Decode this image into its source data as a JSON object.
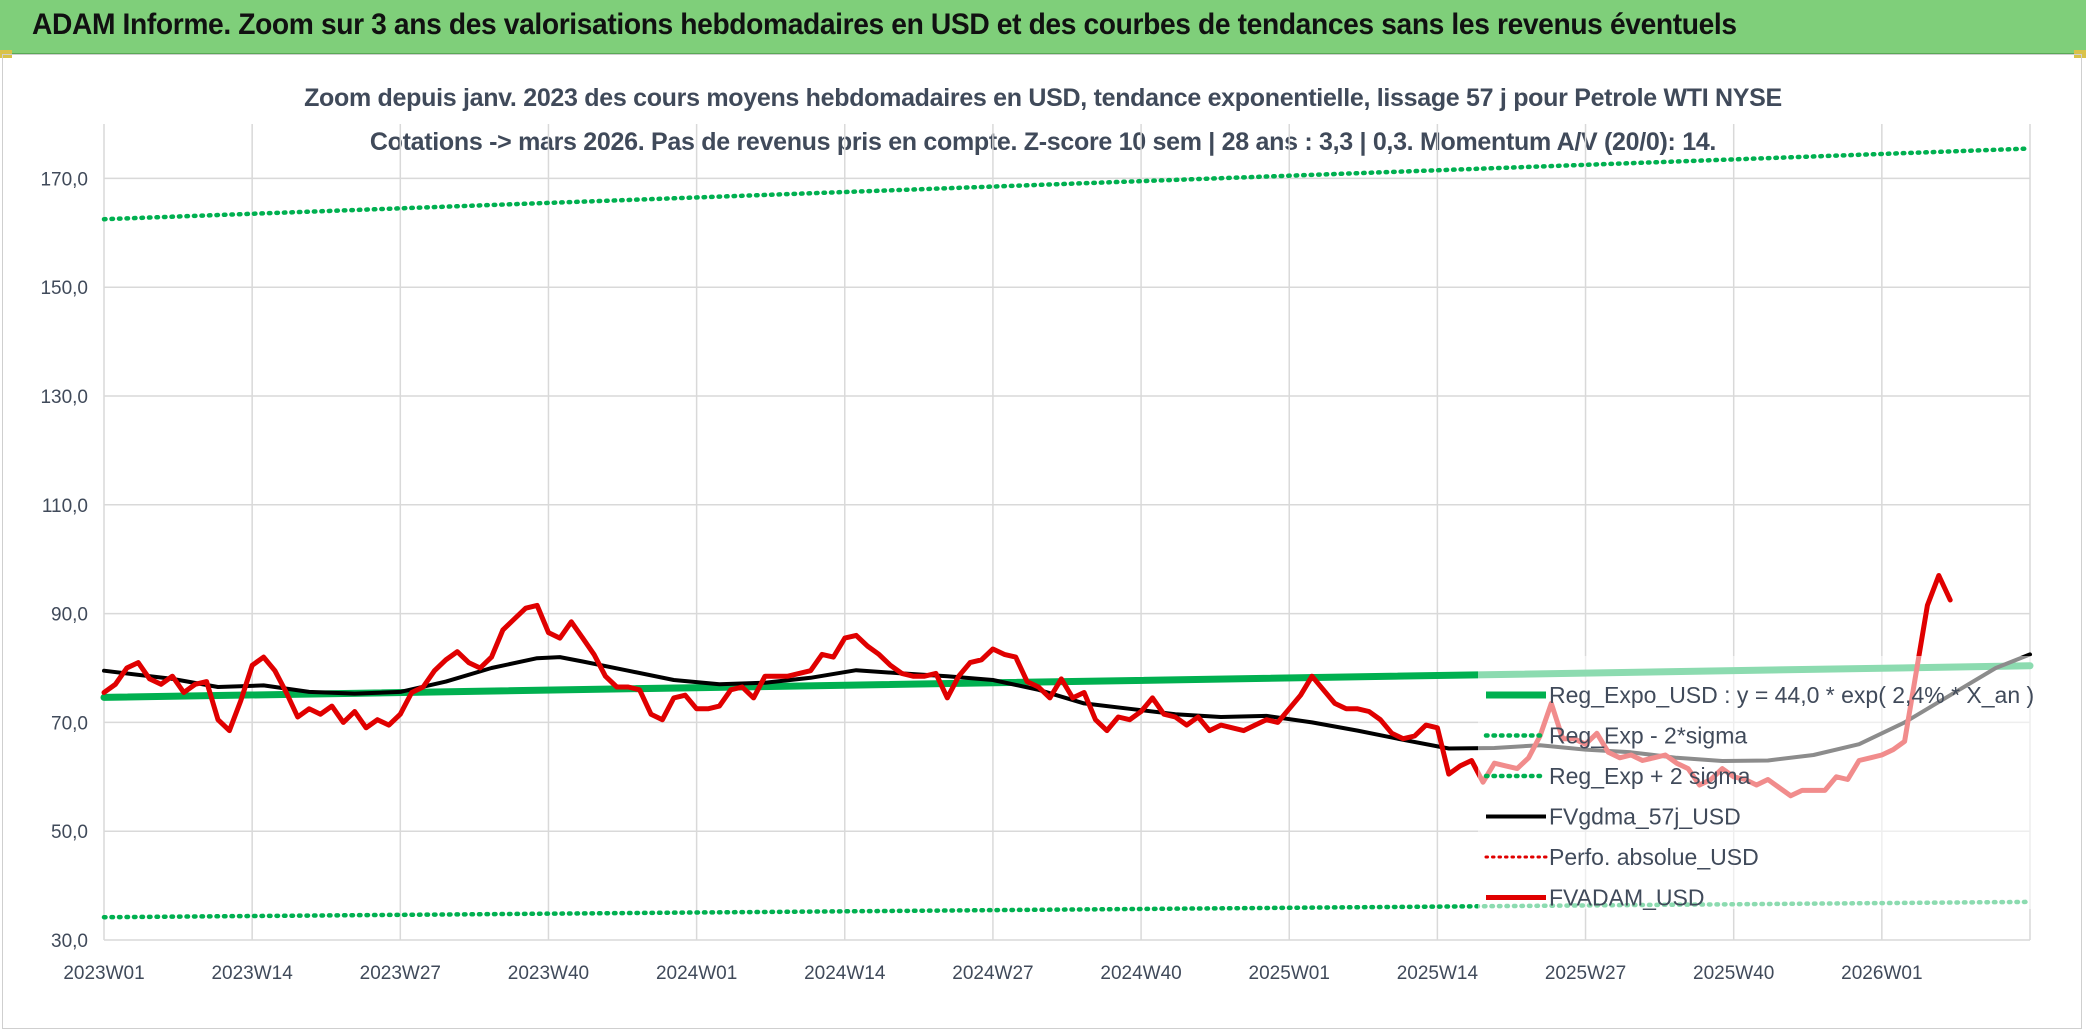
{
  "header": {
    "title": "ADAM Informe. Zoom sur 3 ans des valorisations hebdomadaires en USD et des courbes de tendances sans les revenus éventuels"
  },
  "chart_data": {
    "type": "line",
    "subtitle_line1": "Zoom depuis janv. 2023 des cours moyens hebdomadaires en USD, tendance exponentielle, lissage 57 j pour Petrole WTI NYSE",
    "subtitle_line2": "Cotations -> mars 2026. Pas de revenus pris en compte. Z-score 10 sem | 28 ans : 3,3 | 0,3. Momentum A/V (20/0): 14.",
    "x_tick_labels": [
      "2023W01",
      "2023W14",
      "2023W27",
      "2023W40",
      "2024W01",
      "2024W14",
      "2024W27",
      "2024W40",
      "2025W01",
      "2025W14",
      "2025W27",
      "2025W40",
      "2026W01"
    ],
    "week_count": 170,
    "y_ticks": [
      30,
      50,
      70,
      90,
      110,
      130,
      150,
      170
    ],
    "y_tick_labels": [
      "30,0",
      "50,0",
      "70,0",
      "90,0",
      "110,0",
      "130,0",
      "150,0",
      "170,0"
    ],
    "ylim": [
      30,
      180
    ],
    "grid": true,
    "legend_position": "bottom-right",
    "colors": {
      "reg_expo": "#00b050",
      "reg_band": "#00b050",
      "gdma": "#000000",
      "perfo": "#e00000",
      "fvadam": "#e00000",
      "grid": "#d9d9d9"
    },
    "series": [
      {
        "key": "reg_expo",
        "name": "Reg_Expo_USD : y = 44,0 * exp( 2,4% *  X_an )",
        "style": "solid-thick",
        "values": [
          [
            0,
            74.6
          ],
          [
            169,
            80.4
          ]
        ]
      },
      {
        "key": "reg_minus",
        "name": "Reg_Exp - 2*sigma",
        "style": "dotted",
        "values": [
          [
            0,
            34.2
          ],
          [
            169,
            37.0
          ]
        ]
      },
      {
        "key": "reg_plus",
        "name": "Reg_Exp + 2 sigma",
        "style": "dotted",
        "values": [
          [
            0,
            162.5
          ],
          [
            169,
            175.5
          ]
        ]
      },
      {
        "key": "gdma",
        "name": "FVgdma_57j_USD",
        "style": "solid",
        "values": [
          [
            0,
            79.5
          ],
          [
            6,
            78.0
          ],
          [
            10,
            76.5
          ],
          [
            14,
            76.8
          ],
          [
            18,
            75.6
          ],
          [
            22,
            75.3
          ],
          [
            26,
            75.6
          ],
          [
            30,
            77.5
          ],
          [
            34,
            80.0
          ],
          [
            38,
            81.8
          ],
          [
            40,
            82.0
          ],
          [
            42,
            81.2
          ],
          [
            46,
            79.5
          ],
          [
            50,
            77.8
          ],
          [
            54,
            77.0
          ],
          [
            58,
            77.3
          ],
          [
            62,
            78.2
          ],
          [
            66,
            79.6
          ],
          [
            70,
            79.0
          ],
          [
            74,
            78.5
          ],
          [
            78,
            77.8
          ],
          [
            82,
            76.0
          ],
          [
            86,
            73.5
          ],
          [
            90,
            72.5
          ],
          [
            94,
            71.5
          ],
          [
            98,
            71.0
          ],
          [
            102,
            71.2
          ],
          [
            106,
            70.0
          ],
          [
            110,
            68.5
          ],
          [
            114,
            66.8
          ],
          [
            118,
            65.2
          ],
          [
            122,
            65.3
          ],
          [
            126,
            65.8
          ],
          [
            130,
            65.0
          ],
          [
            134,
            64.5
          ],
          [
            138,
            63.5
          ],
          [
            142,
            62.9
          ],
          [
            146,
            63.0
          ],
          [
            150,
            64.0
          ],
          [
            154,
            66.0
          ],
          [
            158,
            70.0
          ],
          [
            162,
            75.0
          ],
          [
            166,
            80.0
          ],
          [
            169,
            82.5
          ]
        ]
      },
      {
        "key": "perfo",
        "name": "Perfo. absolue_USD",
        "style": "dotted",
        "values": []
      },
      {
        "key": "fvadam",
        "name": "FVADAM_USD",
        "style": "solid-thick",
        "values": [
          [
            0,
            75.5
          ],
          [
            1,
            77.0
          ],
          [
            2,
            80.0
          ],
          [
            3,
            81.0
          ],
          [
            4,
            78.0
          ],
          [
            5,
            77.0
          ],
          [
            6,
            78.5
          ],
          [
            7,
            75.5
          ],
          [
            8,
            77.0
          ],
          [
            9,
            77.5
          ],
          [
            10,
            70.5
          ],
          [
            11,
            68.5
          ],
          [
            12,
            74.0
          ],
          [
            13,
            80.5
          ],
          [
            14,
            82.0
          ],
          [
            15,
            79.5
          ],
          [
            16,
            75.5
          ],
          [
            17,
            71.0
          ],
          [
            18,
            72.5
          ],
          [
            19,
            71.5
          ],
          [
            20,
            73.0
          ],
          [
            21,
            70.0
          ],
          [
            22,
            72.0
          ],
          [
            23,
            69.0
          ],
          [
            24,
            70.5
          ],
          [
            25,
            69.5
          ],
          [
            26,
            71.5
          ],
          [
            27,
            75.5
          ],
          [
            28,
            76.5
          ],
          [
            29,
            79.5
          ],
          [
            30,
            81.5
          ],
          [
            31,
            83.0
          ],
          [
            32,
            81.0
          ],
          [
            33,
            80.0
          ],
          [
            34,
            82.0
          ],
          [
            35,
            87.0
          ],
          [
            36,
            89.0
          ],
          [
            37,
            91.0
          ],
          [
            38,
            91.5
          ],
          [
            39,
            86.5
          ],
          [
            40,
            85.5
          ],
          [
            41,
            88.5
          ],
          [
            42,
            85.5
          ],
          [
            43,
            82.5
          ],
          [
            44,
            78.5
          ],
          [
            45,
            76.5
          ],
          [
            46,
            76.5
          ],
          [
            47,
            76.0
          ],
          [
            48,
            71.5
          ],
          [
            49,
            70.5
          ],
          [
            50,
            74.5
          ],
          [
            51,
            75.0
          ],
          [
            52,
            72.5
          ],
          [
            53,
            72.5
          ],
          [
            54,
            73.0
          ],
          [
            55,
            76.0
          ],
          [
            56,
            76.5
          ],
          [
            57,
            74.5
          ],
          [
            58,
            78.5
          ],
          [
            59,
            78.5
          ],
          [
            60,
            78.5
          ],
          [
            61,
            79.0
          ],
          [
            62,
            79.5
          ],
          [
            63,
            82.5
          ],
          [
            64,
            82.0
          ],
          [
            65,
            85.5
          ],
          [
            66,
            86.0
          ],
          [
            67,
            84.0
          ],
          [
            68,
            82.5
          ],
          [
            69,
            80.5
          ],
          [
            70,
            79.0
          ],
          [
            71,
            78.5
          ],
          [
            72,
            78.5
          ],
          [
            73,
            79.0
          ],
          [
            74,
            74.5
          ],
          [
            75,
            78.5
          ],
          [
            76,
            81.0
          ],
          [
            77,
            81.5
          ],
          [
            78,
            83.5
          ],
          [
            79,
            82.5
          ],
          [
            80,
            82.0
          ],
          [
            81,
            77.5
          ],
          [
            82,
            76.5
          ],
          [
            83,
            74.5
          ],
          [
            84,
            78.0
          ],
          [
            85,
            74.5
          ],
          [
            86,
            75.5
          ],
          [
            87,
            70.5
          ],
          [
            88,
            68.5
          ],
          [
            89,
            71.0
          ],
          [
            90,
            70.5
          ],
          [
            91,
            72.0
          ],
          [
            92,
            74.5
          ],
          [
            93,
            71.5
          ],
          [
            94,
            71.0
          ],
          [
            95,
            69.5
          ],
          [
            96,
            71.0
          ],
          [
            97,
            68.5
          ],
          [
            98,
            69.5
          ],
          [
            99,
            69.0
          ],
          [
            100,
            68.5
          ],
          [
            101,
            69.5
          ],
          [
            102,
            70.5
          ],
          [
            103,
            70.0
          ],
          [
            104,
            72.5
          ],
          [
            105,
            75.0
          ],
          [
            106,
            78.5
          ],
          [
            107,
            76.0
          ],
          [
            108,
            73.5
          ],
          [
            109,
            72.5
          ],
          [
            110,
            72.5
          ],
          [
            111,
            72.0
          ],
          [
            112,
            70.5
          ],
          [
            113,
            68.0
          ],
          [
            114,
            67.0
          ],
          [
            115,
            67.5
          ],
          [
            116,
            69.5
          ],
          [
            117,
            69.0
          ],
          [
            118,
            60.5
          ],
          [
            119,
            62.0
          ],
          [
            120,
            63.0
          ],
          [
            121,
            59.0
          ],
          [
            122,
            62.5
          ],
          [
            123,
            62.0
          ],
          [
            124,
            61.5
          ],
          [
            125,
            63.5
          ],
          [
            126,
            67.5
          ],
          [
            127,
            73.5
          ],
          [
            128,
            67.0
          ],
          [
            129,
            67.0
          ],
          [
            130,
            66.0
          ],
          [
            131,
            68.0
          ],
          [
            132,
            64.5
          ],
          [
            133,
            63.5
          ],
          [
            134,
            64.0
          ],
          [
            135,
            63.0
          ],
          [
            136,
            63.5
          ],
          [
            137,
            64.0
          ],
          [
            138,
            62.5
          ],
          [
            139,
            61.5
          ],
          [
            140,
            58.5
          ],
          [
            141,
            59.5
          ],
          [
            142,
            61.5
          ],
          [
            143,
            60.0
          ],
          [
            144,
            59.5
          ],
          [
            145,
            58.5
          ],
          [
            146,
            59.5
          ],
          [
            147,
            58.0
          ],
          [
            148,
            56.5
          ],
          [
            149,
            57.5
          ],
          [
            150,
            57.5
          ],
          [
            151,
            57.5
          ],
          [
            152,
            60.0
          ],
          [
            153,
            59.5
          ],
          [
            154,
            63.0
          ],
          [
            155,
            63.5
          ],
          [
            156,
            64.0
          ],
          [
            157,
            65.0
          ],
          [
            158,
            66.5
          ],
          [
            159,
            79.0
          ],
          [
            160,
            91.5
          ],
          [
            161,
            97.0
          ],
          [
            162,
            92.5
          ]
        ]
      }
    ]
  }
}
